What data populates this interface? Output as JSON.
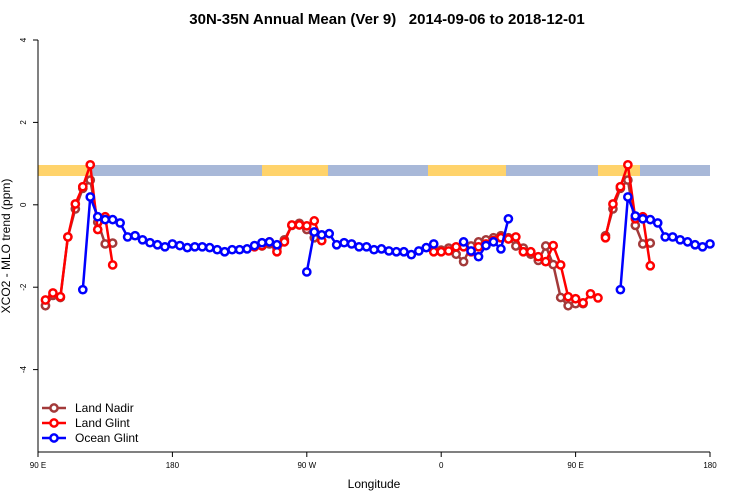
{
  "chart_data": {
    "type": "line",
    "title": "30N-35N Annual Mean (Ver 9)   2014-09-06 to 2018-12-01",
    "xlabel": "Longitude",
    "ylabel": "XCO2 - MLO trend (ppm)",
    "xlim": [
      90,
      540
    ],
    "ylim": [
      -6,
      4
    ],
    "xticks": [
      {
        "value": 90,
        "label": "90 E"
      },
      180,
      {
        "value": 270,
        "label": "90 W"
      },
      {
        "value": 360,
        "label": "0"
      },
      {
        "value": 450,
        "label": "90 E"
      },
      {
        "value": 540,
        "label": "180"
      }
    ],
    "yticks": [
      -4,
      -2,
      0,
      2,
      4
    ],
    "legend": "bottom-left",
    "series": [
      {
        "name": "Land Nadir",
        "color": "#a33a3a",
        "x": [
          95,
          100,
          105,
          110,
          115,
          120,
          125,
          130,
          135,
          140,
          190,
          240,
          245,
          250,
          255,
          260,
          265,
          270,
          275,
          320,
          355,
          360,
          365,
          370,
          375,
          380,
          385,
          390,
          395,
          400,
          405,
          410,
          415,
          420,
          425,
          430,
          435,
          440,
          445,
          450,
          455,
          462,
          470,
          475,
          480,
          485,
          490,
          495,
          500
        ],
        "values": [
          -2.45,
          -2.2,
          -2.25,
          -0.78,
          -0.1,
          0.4,
          0.6,
          -0.42,
          -0.95,
          -0.93,
          null,
          -1.0,
          -0.95,
          -1.05,
          -0.85,
          -0.5,
          -0.45,
          -0.6,
          -0.8,
          null,
          -1.1,
          -1.1,
          -1.05,
          -1.2,
          -1.38,
          -1.0,
          -0.9,
          -0.85,
          -0.8,
          -0.75,
          -0.8,
          -1.0,
          -1.05,
          -1.2,
          -1.35,
          -1.0,
          -1.45,
          -2.25,
          -2.45,
          -2.4,
          -2.4,
          null,
          -0.75,
          -0.1,
          0.4,
          0.6,
          -0.5,
          -0.95,
          -0.93
        ]
      },
      {
        "name": "Land Glint",
        "color": "#ff0000",
        "x": [
          95,
          100,
          105,
          110,
          115,
          120,
          125,
          130,
          135,
          140,
          190,
          235,
          240,
          245,
          250,
          255,
          260,
          265,
          270,
          275,
          280,
          320,
          355,
          360,
          365,
          370,
          375,
          380,
          385,
          390,
          395,
          400,
          405,
          410,
          415,
          420,
          425,
          430,
          435,
          440,
          445,
          450,
          455,
          460,
          465,
          467,
          470,
          475,
          480,
          485,
          490,
          495,
          500
        ],
        "values": [
          -2.31,
          -2.14,
          -2.23,
          -0.78,
          0.02,
          0.44,
          0.97,
          -0.6,
          -0.29,
          -1.46,
          null,
          -1.02,
          -0.99,
          -0.9,
          -1.14,
          -0.9,
          -0.49,
          -0.49,
          -0.51,
          -0.39,
          -0.87,
          null,
          -1.14,
          -1.14,
          -1.12,
          -1.02,
          -1.02,
          -1.14,
          -1.02,
          -0.95,
          -0.87,
          -0.8,
          -0.83,
          -0.78,
          -1.14,
          -1.14,
          -1.26,
          -1.38,
          -0.99,
          -1.46,
          -2.23,
          -2.28,
          -2.38,
          -2.16,
          -2.26,
          null,
          -0.8,
          0.02,
          0.44,
          0.97,
          -0.34,
          -0.29,
          -1.48
        ]
      },
      {
        "name": "Ocean Glint",
        "color": "#0000ff",
        "x": [
          120,
          125,
          130,
          135,
          140,
          145,
          150,
          155,
          160,
          165,
          170,
          175,
          180,
          185,
          190,
          195,
          200,
          205,
          210,
          215,
          220,
          225,
          230,
          235,
          240,
          245,
          250,
          260,
          270,
          275,
          280,
          285,
          290,
          295,
          300,
          305,
          310,
          315,
          320,
          325,
          330,
          335,
          340,
          345,
          350,
          355,
          365,
          375,
          380,
          385,
          390,
          395,
          400,
          405,
          470,
          480,
          485,
          490,
          495,
          500,
          505,
          510,
          515,
          520,
          525,
          530,
          535,
          540
        ],
        "values": [
          -2.06,
          0.19,
          -0.29,
          -0.36,
          -0.36,
          -0.44,
          -0.78,
          -0.75,
          -0.85,
          -0.92,
          -0.97,
          -1.02,
          -0.95,
          -0.99,
          -1.04,
          -1.02,
          -1.02,
          -1.04,
          -1.09,
          -1.14,
          -1.09,
          -1.09,
          -1.07,
          -0.99,
          -0.92,
          -0.9,
          -0.97,
          null,
          -1.63,
          -0.66,
          -0.73,
          -0.7,
          -0.97,
          -0.92,
          -0.95,
          -1.02,
          -1.02,
          -1.09,
          -1.07,
          -1.12,
          -1.14,
          -1.14,
          -1.21,
          -1.12,
          -1.04,
          -0.95,
          null,
          -0.9,
          -1.12,
          -1.26,
          -0.99,
          -0.9,
          -1.07,
          -0.34,
          null,
          -2.06,
          0.19,
          -0.27,
          -0.34,
          -0.36,
          -0.44,
          -0.78,
          -0.78,
          -0.85,
          -0.9,
          -0.97,
          -1.02,
          -0.95
        ]
      }
    ]
  }
}
